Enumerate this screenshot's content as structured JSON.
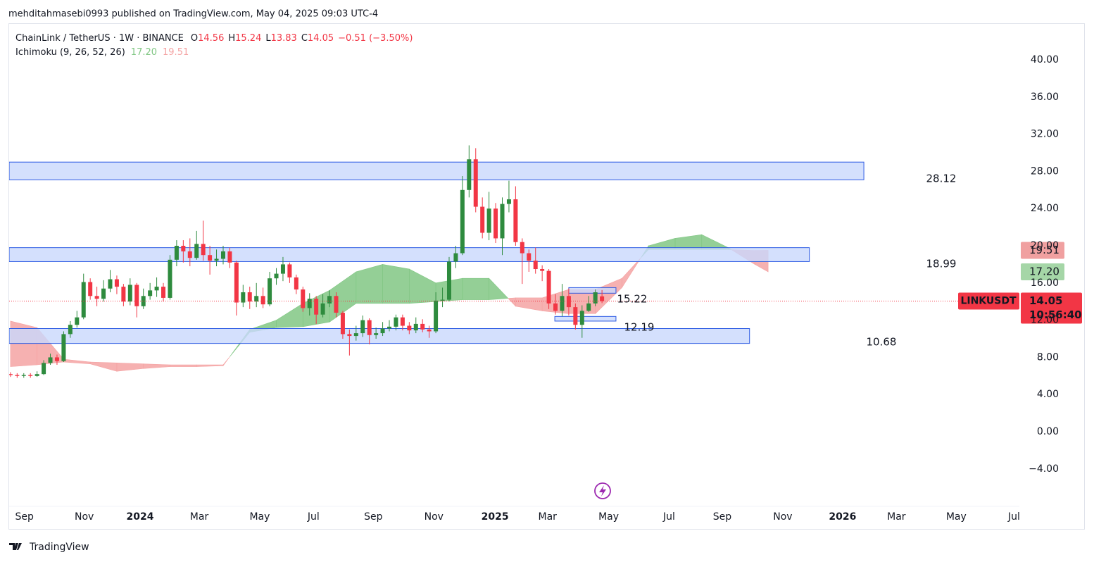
{
  "header": {
    "publisher": "mehditahmasebi0993 published on TradingView.com, May 04, 2025 09:03 UTC-4"
  },
  "chart_data": {
    "type": "candlestick",
    "symbol": "ChainLink / TetherUS · 1W · BINANCE",
    "ohlc_letters": [
      "O",
      "H",
      "L",
      "C"
    ],
    "change": "−0.51 (−3.50%)",
    "up_color": "#2e8b3e",
    "down_color": "#f23645",
    "x": [
      0,
      1,
      2,
      3,
      4,
      5,
      6,
      7,
      8,
      9,
      10,
      11,
      12,
      13,
      14,
      15,
      16,
      17,
      18,
      19,
      20,
      21,
      22,
      23,
      24,
      25,
      26,
      27,
      28,
      29,
      30,
      31,
      32,
      33,
      34,
      35,
      36,
      37,
      38,
      39,
      40,
      41,
      42,
      43,
      44,
      45,
      46,
      47,
      48,
      49,
      50,
      51,
      52,
      53,
      54,
      55,
      56,
      57,
      58,
      59,
      60,
      61,
      62,
      63,
      64,
      65,
      66,
      67,
      68,
      69,
      70,
      71,
      72,
      73,
      74,
      75,
      76,
      77,
      78,
      79,
      80,
      81,
      82,
      83,
      84,
      85,
      86,
      87,
      88,
      89
    ],
    "open": [
      6.2,
      6.1,
      6.0,
      6.1,
      6.0,
      6.2,
      7.4,
      8.0,
      7.6,
      10.5,
      11.5,
      12.3,
      16.1,
      14.6,
      14.3,
      15.4,
      16.4,
      15.6,
      14.0,
      15.8,
      13.5,
      14.6,
      15.2,
      15.6,
      14.4,
      18.5,
      20.0,
      19.4,
      18.7,
      20.2,
      19.0,
      18.4,
      18.6,
      19.4,
      18.2,
      13.9,
      15.0,
      14.0,
      14.6,
      13.7,
      16.5,
      17.0,
      18.0,
      16.6,
      15.3,
      13.3,
      14.3,
      12.6,
      13.8,
      14.6,
      12.8,
      10.5,
      10.3,
      10.6,
      12.0,
      10.4,
      10.6,
      11.1,
      11.3,
      12.3,
      11.4,
      10.9,
      11.6,
      11.0,
      10.8,
      14.1,
      14.2,
      18.3,
      19.2,
      26.0,
      29.3,
      24.2,
      21.4,
      24.0,
      20.8,
      24.5,
      25.0,
      20.4,
      19.2,
      18.4,
      17.5,
      17.3,
      13.8,
      13.0,
      14.6,
      13.4,
      11.5,
      13.0,
      13.8,
      14.56
    ],
    "high": [
      6.4,
      6.3,
      6.3,
      6.3,
      6.5,
      7.7,
      8.4,
      8.3,
      10.8,
      11.9,
      13.0,
      17.0,
      16.5,
      15.6,
      16.3,
      17.4,
      16.8,
      15.9,
      16.5,
      16.0,
      15.4,
      16.0,
      16.6,
      16.0,
      19.0,
      20.6,
      20.6,
      20.8,
      21.6,
      22.7,
      20.0,
      19.6,
      20.0,
      19.8,
      18.4,
      15.8,
      15.6,
      16.0,
      15.5,
      17.2,
      17.6,
      18.8,
      18.2,
      16.9,
      15.6,
      14.9,
      14.6,
      14.8,
      15.2,
      15.0,
      13.0,
      11.0,
      11.4,
      12.5,
      12.2,
      11.2,
      11.8,
      12.0,
      12.6,
      12.6,
      11.8,
      12.3,
      12.1,
      11.4,
      15.0,
      15.5,
      18.8,
      20.0,
      27.5,
      30.8,
      30.5,
      25.2,
      25.8,
      24.6,
      25.2,
      27.0,
      26.4,
      20.8,
      19.6,
      19.8,
      17.9,
      17.5,
      14.8,
      15.9,
      15.4,
      13.8,
      13.6,
      14.6,
      15.3,
      15.24
    ],
    "low": [
      5.9,
      5.8,
      5.8,
      5.8,
      5.9,
      6.1,
      7.2,
      7.2,
      7.5,
      10.1,
      11.2,
      12.1,
      14.2,
      13.5,
      14.0,
      15.0,
      14.8,
      13.5,
      13.6,
      12.3,
      13.2,
      14.2,
      14.5,
      14.0,
      14.2,
      17.8,
      18.2,
      17.8,
      18.5,
      18.4,
      16.9,
      17.8,
      18.0,
      17.6,
      12.5,
      13.4,
      13.2,
      13.4,
      13.3,
      13.5,
      15.8,
      16.2,
      16.0,
      14.8,
      12.9,
      12.5,
      11.6,
      12.3,
      13.4,
      12.3,
      10.0,
      8.2,
      9.8,
      10.2,
      9.4,
      10.0,
      10.3,
      10.8,
      10.9,
      10.9,
      10.5,
      10.6,
      10.7,
      10.1,
      10.6,
      13.4,
      14.0,
      17.6,
      19.0,
      25.2,
      23.6,
      20.8,
      20.6,
      20.3,
      19.0,
      23.6,
      20.0,
      15.9,
      17.2,
      17.0,
      16.2,
      13.2,
      12.6,
      12.4,
      12.5,
      11.0,
      10.1,
      12.9,
      13.5,
      13.83
    ],
    "close": [
      6.1,
      6.0,
      6.1,
      6.0,
      6.2,
      7.4,
      8.0,
      7.6,
      10.5,
      11.5,
      12.3,
      16.1,
      14.6,
      14.3,
      15.4,
      16.4,
      15.6,
      14.0,
      15.8,
      13.5,
      14.6,
      15.2,
      15.6,
      14.4,
      18.5,
      20.0,
      19.4,
      18.7,
      20.2,
      19.0,
      18.4,
      18.6,
      19.4,
      18.2,
      13.9,
      15.0,
      14.0,
      14.6,
      13.7,
      16.5,
      17.0,
      18.0,
      16.6,
      15.3,
      13.3,
      14.3,
      12.6,
      13.8,
      14.6,
      12.8,
      10.5,
      10.3,
      10.6,
      12.0,
      10.4,
      10.6,
      11.1,
      11.3,
      12.3,
      11.4,
      10.9,
      11.6,
      11.0,
      10.8,
      14.1,
      14.2,
      18.3,
      19.2,
      26.0,
      29.3,
      24.2,
      21.4,
      24.0,
      20.8,
      24.5,
      25.0,
      20.4,
      19.2,
      18.4,
      17.5,
      17.3,
      13.8,
      13.0,
      14.6,
      13.4,
      11.5,
      13.0,
      13.8,
      15.0,
      14.05
    ],
    "xlim": [
      -0.2,
      151.8
    ],
    "xticks": [
      {
        "value": 2.1,
        "label": "Sep"
      },
      {
        "value": 11.1,
        "label": "Nov"
      },
      {
        "value": 19.5,
        "label": "2024"
      },
      {
        "value": 28.4,
        "label": "Mar"
      },
      {
        "value": 37.5,
        "label": "May"
      },
      {
        "value": 45.6,
        "label": "Jul"
      },
      {
        "value": 54.6,
        "label": "Sep"
      },
      {
        "value": 63.7,
        "label": "Nov"
      },
      {
        "value": 72.9,
        "label": "2025"
      },
      {
        "value": 80.8,
        "label": "Mar"
      },
      {
        "value": 90.0,
        "label": "May"
      },
      {
        "value": 99.1,
        "label": "Jul"
      },
      {
        "value": 107.1,
        "label": "Sep"
      },
      {
        "value": 116.2,
        "label": "Nov"
      },
      {
        "value": 125.2,
        "label": "2026"
      },
      {
        "value": 133.3,
        "label": "Mar"
      },
      {
        "value": 142.3,
        "label": "May"
      },
      {
        "value": 151.0,
        "label": "Jul"
      }
    ],
    "ylim": [
      -7.95,
      43.86
    ],
    "yticks": [
      {
        "value": 40,
        "label": "40.00"
      },
      {
        "value": 36,
        "label": "36.00"
      },
      {
        "value": 32,
        "label": "32.00"
      },
      {
        "value": 28,
        "label": "28.00"
      },
      {
        "value": 24,
        "label": "24.00"
      },
      {
        "value": 20,
        "label": "20.00"
      },
      {
        "value": 16,
        "label": "16.00"
      },
      {
        "value": 12,
        "label": "12.00"
      },
      {
        "value": 8,
        "label": "8.00"
      },
      {
        "value": 4,
        "label": "4.00"
      },
      {
        "value": 0,
        "label": "0.00"
      },
      {
        "value": -4,
        "label": "−4.00"
      }
    ],
    "ichimoku": {
      "name": "Ichimoku (9, 26, 52, 26)",
      "x": [
        0,
        4,
        8,
        12,
        16,
        20,
        24,
        28,
        32,
        36,
        40,
        44,
        48,
        52,
        56,
        60,
        64,
        68,
        72,
        76,
        80,
        84,
        88,
        92,
        96,
        100,
        104,
        108,
        112,
        114
      ],
      "span_a": {
        "color": "#81c784",
        "last_label": "17.20",
        "values": [
          7.0,
          7.2,
          7.5,
          7.3,
          6.5,
          6.8,
          7.0,
          7.0,
          7.1,
          11.0,
          12.0,
          13.8,
          15.2,
          17.2,
          18.0,
          17.5,
          16.0,
          16.5,
          16.5,
          13.5,
          13.0,
          12.7,
          12.7,
          15.5,
          20.0,
          20.8,
          21.2,
          19.8,
          18.0,
          17.2
        ]
      },
      "span_b": {
        "color": "#f4a3a3",
        "last_label": "19.51",
        "values": [
          11.9,
          11.2,
          7.8,
          7.5,
          7.4,
          7.3,
          7.2,
          7.2,
          7.2,
          10.7,
          11.2,
          11.3,
          11.8,
          13.8,
          13.8,
          13.8,
          14.0,
          14.2,
          14.2,
          14.4,
          14.4,
          15.3,
          15.3,
          16.5,
          19.6,
          19.6,
          19.6,
          19.6,
          19.5,
          19.51
        ]
      }
    },
    "zones": [
      {
        "xlim": [
          -0.2,
          128.4
        ],
        "ylim": [
          27.1,
          29.0
        ],
        "label": "28.12"
      },
      {
        "xlim": [
          -0.2,
          120.2
        ],
        "ylim": [
          18.3,
          19.8
        ],
        "label": "18.99"
      },
      {
        "xlim": [
          84.0,
          91.1
        ],
        "ylim": [
          14.9,
          15.5
        ],
        "label": "15.22"
      },
      {
        "xlim": [
          81.9,
          91.1
        ],
        "ylim": [
          11.9,
          12.4
        ],
        "label": "12.19"
      },
      {
        "xlim": [
          -0.2,
          111.2
        ],
        "ylim": [
          9.5,
          11.1
        ],
        "label": "10.68"
      }
    ],
    "last_price": {
      "symbol": "LINKUSDT",
      "label": "14.05",
      "countdown": "10:56:40"
    }
  },
  "footer": {
    "brand": "TradingView"
  }
}
